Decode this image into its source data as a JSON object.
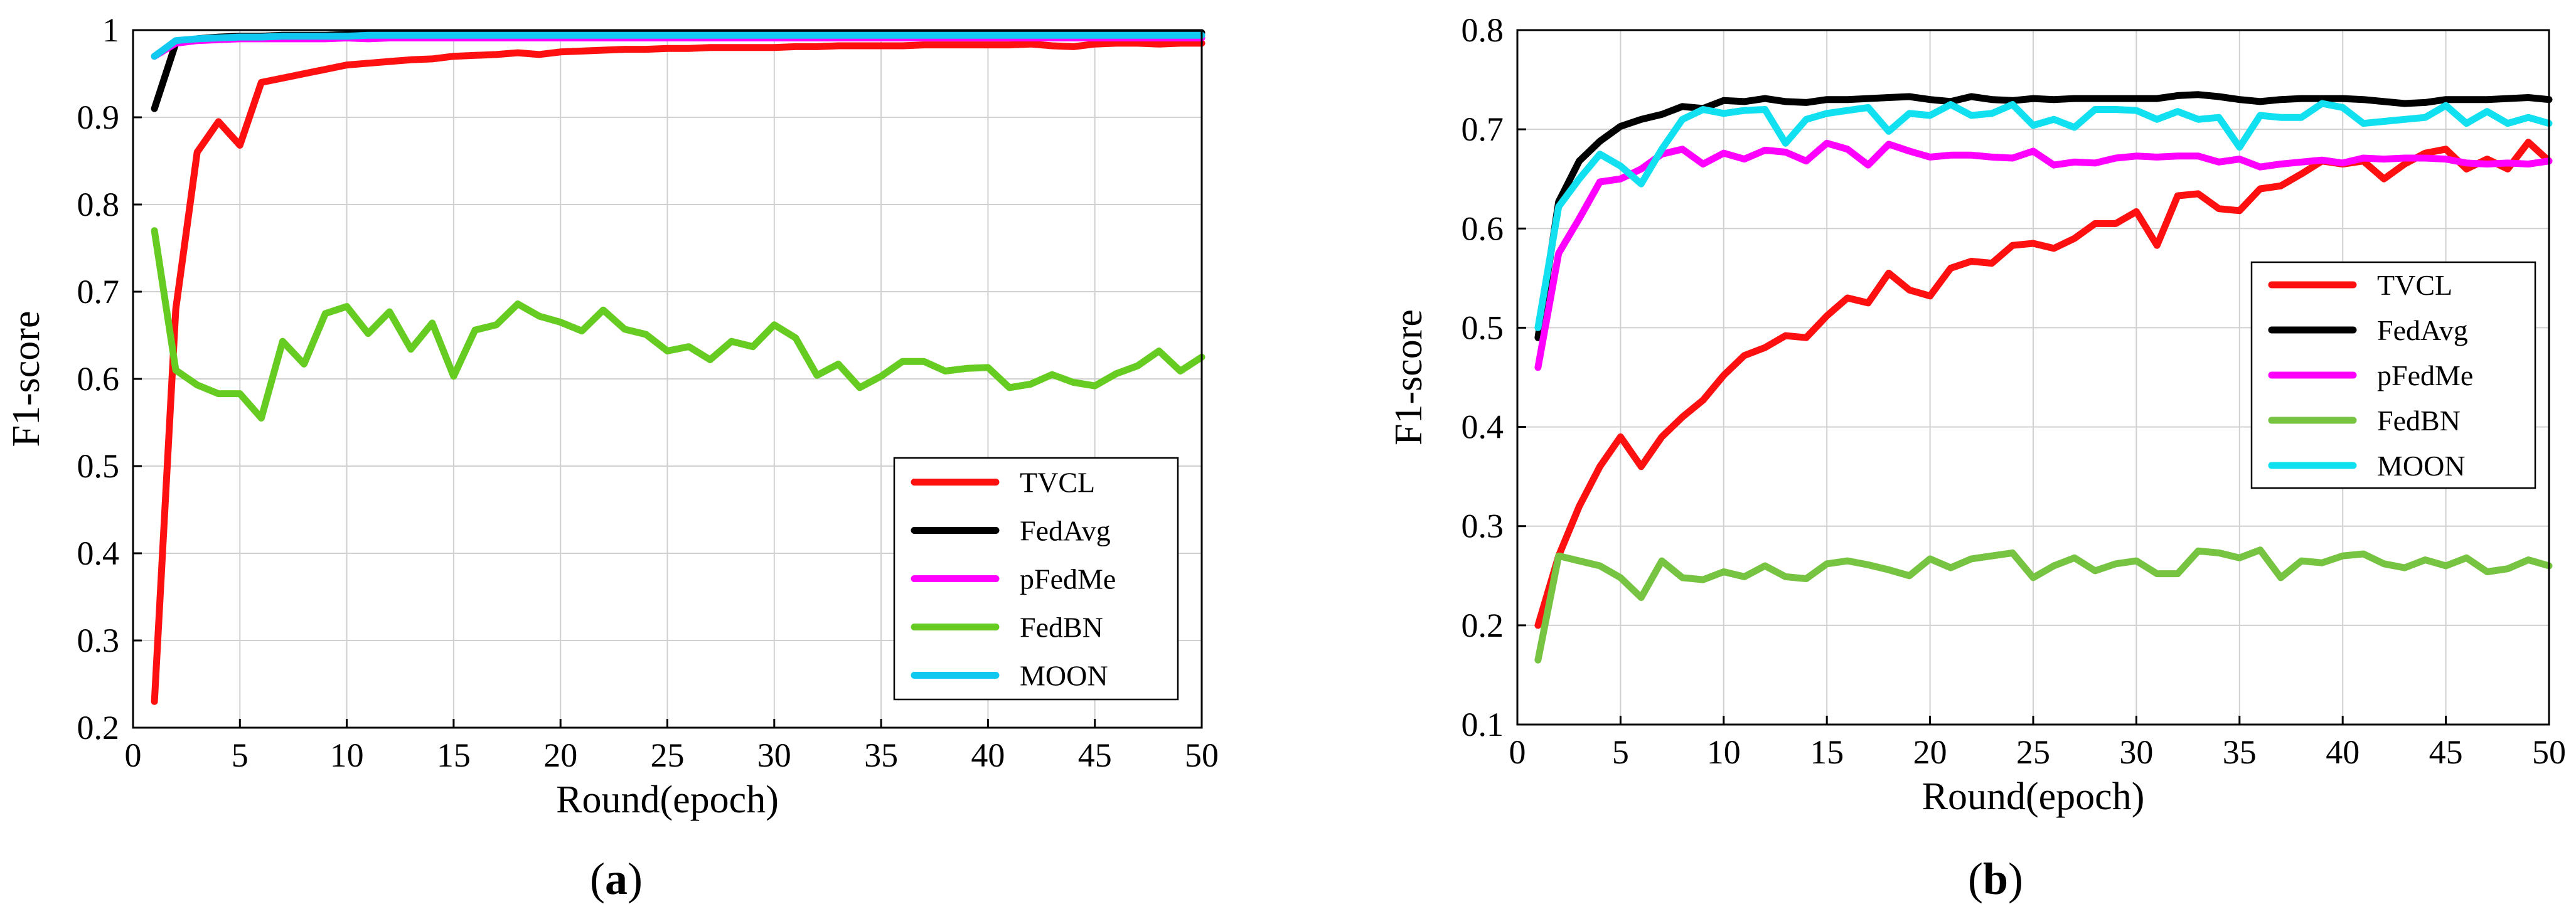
{
  "chart_data": [
    {
      "panel": "a",
      "type": "line",
      "caption_open": "(",
      "caption_letter": "a",
      "caption_close": ")",
      "xlabel": "Round(epoch)",
      "ylabel": "F1-score",
      "xlim": [
        0,
        50
      ],
      "ylim": [
        0.2,
        1.0
      ],
      "xticks": [
        0,
        5,
        10,
        15,
        20,
        25,
        30,
        35,
        40,
        45,
        50
      ],
      "yticks": [
        0.2,
        0.3,
        0.4,
        0.5,
        0.6,
        0.7,
        0.8,
        0.9,
        1.0
      ],
      "ytick_labels": [
        "0.2",
        "0.3",
        "0.4",
        "0.5",
        "0.6",
        "0.7",
        "0.8",
        "0.9",
        "1"
      ],
      "grid": true,
      "legend_position": "lower-right",
      "x": [
        1,
        2,
        3,
        4,
        5,
        6,
        7,
        8,
        9,
        10,
        11,
        12,
        13,
        14,
        15,
        16,
        17,
        18,
        19,
        20,
        21,
        22,
        23,
        24,
        25,
        26,
        27,
        28,
        29,
        30,
        31,
        32,
        33,
        34,
        35,
        36,
        37,
        38,
        39,
        40,
        41,
        42,
        43,
        44,
        45,
        46,
        47,
        48,
        49,
        50
      ],
      "series": [
        {
          "name": "TVCL",
          "color": "#ff1010",
          "values": [
            0.23,
            0.68,
            0.86,
            0.895,
            0.868,
            0.94,
            0.945,
            0.95,
            0.955,
            0.96,
            0.962,
            0.964,
            0.966,
            0.967,
            0.97,
            0.971,
            0.972,
            0.974,
            0.972,
            0.975,
            0.976,
            0.977,
            0.978,
            0.978,
            0.979,
            0.979,
            0.98,
            0.98,
            0.98,
            0.98,
            0.981,
            0.981,
            0.982,
            0.982,
            0.982,
            0.982,
            0.983,
            0.983,
            0.983,
            0.983,
            0.983,
            0.984,
            0.982,
            0.981,
            0.984,
            0.985,
            0.985,
            0.984,
            0.985,
            0.985
          ]
        },
        {
          "name": "FedAvg",
          "color": "#000000",
          "values": [
            0.91,
            0.985,
            0.99,
            0.992,
            0.993,
            0.993,
            0.994,
            0.994,
            0.994,
            0.995,
            0.995,
            0.995,
            0.995,
            0.995,
            0.995,
            0.996,
            0.996,
            0.996,
            0.996,
            0.996,
            0.996,
            0.996,
            0.996,
            0.996,
            0.996,
            0.996,
            0.997,
            0.997,
            0.997,
            0.997,
            0.997,
            0.997,
            0.997,
            0.997,
            0.997,
            0.997,
            0.997,
            0.997,
            0.997,
            0.997,
            0.997,
            0.997,
            0.997,
            0.997,
            0.997,
            0.997,
            0.997,
            0.997,
            0.997,
            0.997
          ]
        },
        {
          "name": "pFedMe",
          "color": "#ff00ff",
          "values": [
            0.97,
            0.985,
            0.988,
            0.989,
            0.99,
            0.99,
            0.99,
            0.99,
            0.99,
            0.991,
            0.99,
            0.991,
            0.991,
            0.991,
            0.991,
            0.991,
            0.991,
            0.991,
            0.991,
            0.991,
            0.991,
            0.991,
            0.991,
            0.991,
            0.991,
            0.991,
            0.991,
            0.991,
            0.991,
            0.991,
            0.991,
            0.991,
            0.991,
            0.991,
            0.991,
            0.991,
            0.991,
            0.991,
            0.991,
            0.991,
            0.991,
            0.991,
            0.991,
            0.991,
            0.991,
            0.991,
            0.991,
            0.991,
            0.991,
            0.991
          ]
        },
        {
          "name": "FedBN",
          "color": "#66cc22",
          "values": [
            0.77,
            0.61,
            0.593,
            0.583,
            0.583,
            0.555,
            0.643,
            0.617,
            0.675,
            0.683,
            0.652,
            0.677,
            0.634,
            0.664,
            0.603,
            0.656,
            0.662,
            0.686,
            0.672,
            0.665,
            0.655,
            0.679,
            0.657,
            0.651,
            0.632,
            0.637,
            0.622,
            0.643,
            0.637,
            0.662,
            0.647,
            0.604,
            0.617,
            0.59,
            0.603,
            0.62,
            0.62,
            0.609,
            0.612,
            0.613,
            0.59,
            0.594,
            0.605,
            0.596,
            0.592,
            0.606,
            0.615,
            0.632,
            0.609,
            0.625
          ]
        },
        {
          "name": "MOON",
          "color": "#10c8f0",
          "values": [
            0.97,
            0.988,
            0.99,
            0.991,
            0.992,
            0.992,
            0.993,
            0.993,
            0.993,
            0.993,
            0.994,
            0.994,
            0.994,
            0.994,
            0.994,
            0.994,
            0.994,
            0.994,
            0.994,
            0.994,
            0.994,
            0.994,
            0.994,
            0.994,
            0.994,
            0.994,
            0.994,
            0.994,
            0.994,
            0.994,
            0.994,
            0.994,
            0.994,
            0.994,
            0.994,
            0.994,
            0.994,
            0.994,
            0.994,
            0.994,
            0.994,
            0.994,
            0.994,
            0.994,
            0.994,
            0.994,
            0.994,
            0.994,
            0.994,
            0.994
          ]
        }
      ]
    },
    {
      "panel": "b",
      "type": "line",
      "caption_open": "(",
      "caption_letter": "b",
      "caption_close": ")",
      "xlabel": "Round(epoch)",
      "ylabel": "F1-score",
      "xlim": [
        0,
        50
      ],
      "ylim": [
        0.1,
        0.8
      ],
      "xticks": [
        0,
        5,
        10,
        15,
        20,
        25,
        30,
        35,
        40,
        45,
        50
      ],
      "yticks": [
        0.1,
        0.2,
        0.3,
        0.4,
        0.5,
        0.6,
        0.7,
        0.8
      ],
      "ytick_labels": [
        "0.1",
        "0.2",
        "0.3",
        "0.4",
        "0.5",
        "0.6",
        "0.7",
        "0.8"
      ],
      "grid": true,
      "legend_position": "center-right",
      "x": [
        1,
        2,
        3,
        4,
        5,
        6,
        7,
        8,
        9,
        10,
        11,
        12,
        13,
        14,
        15,
        16,
        17,
        18,
        19,
        20,
        21,
        22,
        23,
        24,
        25,
        26,
        27,
        28,
        29,
        30,
        31,
        32,
        33,
        34,
        35,
        36,
        37,
        38,
        39,
        40,
        41,
        42,
        43,
        44,
        45,
        46,
        47,
        48,
        49,
        50
      ],
      "series": [
        {
          "name": "TVCL",
          "color": "#ff1010",
          "values": [
            0.2,
            0.27,
            0.32,
            0.36,
            0.39,
            0.36,
            0.39,
            0.41,
            0.427,
            0.452,
            0.472,
            0.48,
            0.492,
            0.49,
            0.512,
            0.53,
            0.525,
            0.555,
            0.538,
            0.532,
            0.56,
            0.567,
            0.565,
            0.583,
            0.585,
            0.58,
            0.59,
            0.605,
            0.605,
            0.617,
            0.583,
            0.633,
            0.635,
            0.62,
            0.618,
            0.64,
            0.643,
            0.655,
            0.668,
            0.665,
            0.668,
            0.65,
            0.665,
            0.676,
            0.68,
            0.66,
            0.67,
            0.66,
            0.687,
            0.668
          ]
        },
        {
          "name": "FedAvg",
          "color": "#000000",
          "values": [
            0.49,
            0.627,
            0.668,
            0.688,
            0.703,
            0.71,
            0.715,
            0.723,
            0.721,
            0.729,
            0.728,
            0.731,
            0.728,
            0.727,
            0.73,
            0.73,
            0.731,
            0.732,
            0.733,
            0.73,
            0.728,
            0.733,
            0.73,
            0.729,
            0.731,
            0.73,
            0.731,
            0.731,
            0.731,
            0.731,
            0.731,
            0.734,
            0.735,
            0.733,
            0.73,
            0.728,
            0.73,
            0.731,
            0.731,
            0.731,
            0.73,
            0.728,
            0.726,
            0.727,
            0.73,
            0.73,
            0.73,
            0.731,
            0.732,
            0.73
          ]
        },
        {
          "name": "pFedMe",
          "color": "#ff00ff",
          "values": [
            0.46,
            0.575,
            0.61,
            0.647,
            0.65,
            0.66,
            0.675,
            0.68,
            0.665,
            0.676,
            0.67,
            0.679,
            0.677,
            0.668,
            0.686,
            0.68,
            0.664,
            0.685,
            0.678,
            0.672,
            0.674,
            0.674,
            0.672,
            0.671,
            0.678,
            0.664,
            0.667,
            0.666,
            0.671,
            0.673,
            0.672,
            0.673,
            0.673,
            0.667,
            0.67,
            0.662,
            0.665,
            0.667,
            0.669,
            0.666,
            0.671,
            0.67,
            0.671,
            0.671,
            0.67,
            0.666,
            0.665,
            0.666,
            0.665,
            0.668
          ]
        },
        {
          "name": "FedBN",
          "color": "#76c442",
          "values": [
            0.165,
            0.27,
            0.265,
            0.26,
            0.248,
            0.228,
            0.265,
            0.248,
            0.246,
            0.254,
            0.249,
            0.26,
            0.249,
            0.247,
            0.262,
            0.265,
            0.261,
            0.256,
            0.25,
            0.267,
            0.258,
            0.267,
            0.27,
            0.273,
            0.248,
            0.26,
            0.268,
            0.255,
            0.262,
            0.265,
            0.252,
            0.252,
            0.275,
            0.273,
            0.268,
            0.276,
            0.248,
            0.265,
            0.263,
            0.27,
            0.272,
            0.262,
            0.258,
            0.266,
            0.26,
            0.268,
            0.254,
            0.257,
            0.266,
            0.26
          ]
        },
        {
          "name": "MOON",
          "color": "#10e0f0",
          "values": [
            0.5,
            0.622,
            0.65,
            0.675,
            0.663,
            0.645,
            0.68,
            0.71,
            0.72,
            0.716,
            0.719,
            0.72,
            0.686,
            0.71,
            0.716,
            0.719,
            0.722,
            0.698,
            0.716,
            0.714,
            0.725,
            0.714,
            0.716,
            0.725,
            0.704,
            0.71,
            0.702,
            0.72,
            0.72,
            0.719,
            0.71,
            0.718,
            0.71,
            0.712,
            0.682,
            0.714,
            0.712,
            0.712,
            0.726,
            0.722,
            0.706,
            0.708,
            0.71,
            0.712,
            0.724,
            0.706,
            0.718,
            0.706,
            0.712,
            0.706
          ]
        }
      ]
    }
  ]
}
